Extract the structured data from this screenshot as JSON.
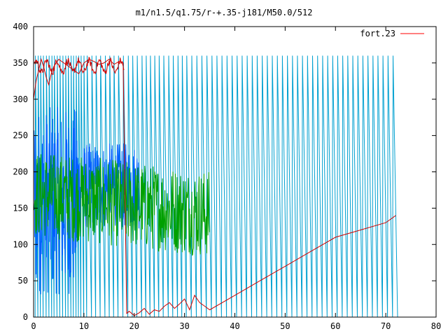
{
  "chart_data": {
    "type": "line",
    "title": "m1/n1.5/q1.75/r-+.35-j181/M50.0/512",
    "xlabel": "",
    "ylabel": "",
    "xlim": [
      0,
      80
    ],
    "ylim": [
      0,
      400
    ],
    "x_ticks": [
      0,
      10,
      20,
      30,
      40,
      50,
      60,
      70,
      80
    ],
    "y_ticks": [
      0,
      50,
      100,
      150,
      200,
      250,
      300,
      350,
      400
    ],
    "grid": false,
    "legend": {
      "position": "top-right",
      "entries": [
        {
          "label": "fort.23",
          "color": "#ff0000"
        }
      ]
    },
    "colors": {
      "red": "#cc0000",
      "green": "#00a000",
      "blue": "#0060ff",
      "cyan": "#00a0d0",
      "legend_red": "#ff0000"
    },
    "series": [
      {
        "name": "fort.23",
        "color": "#cc0000",
        "x": [
          0,
          0.5,
          1,
          1.5,
          2,
          2.5,
          3,
          3.5,
          4,
          5,
          6,
          7,
          8,
          9,
          10,
          11,
          12,
          13,
          14,
          15,
          16,
          17,
          17.8,
          18.5,
          19,
          20,
          21,
          22,
          23,
          24,
          25,
          26,
          27,
          28,
          29,
          30,
          31,
          32,
          33,
          34,
          35,
          40,
          45,
          50,
          55,
          60,
          65,
          70,
          72
        ],
        "y": [
          300,
          325,
          340,
          355,
          345,
          330,
          320,
          335,
          345,
          355,
          350,
          345,
          340,
          335,
          350,
          355,
          352,
          348,
          350,
          355,
          348,
          352,
          350,
          5,
          8,
          2,
          6,
          12,
          4,
          10,
          8,
          15,
          20,
          12,
          18,
          25,
          10,
          30,
          20,
          15,
          10,
          30,
          50,
          70,
          90,
          110,
          120,
          130,
          140
        ]
      }
    ],
    "approx_note": ""
  }
}
